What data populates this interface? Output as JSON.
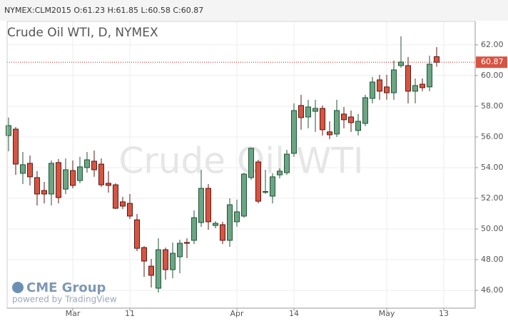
{
  "chart_data": {
    "type": "candlestick",
    "header": "NYMEX:CLM2015 O:61.23 H:61.85 L:60.58 C:60.87",
    "title": "Crude Oil WTI, D, NYMEX",
    "watermark": "Crude Oil WTI",
    "logo": "CME Group",
    "powered_by": "powered by TradingView",
    "categories": [
      null,
      null,
      null,
      null,
      null,
      null,
      null,
      null,
      null,
      "Mar",
      null,
      null,
      null,
      null,
      null,
      null,
      null,
      "11",
      null,
      null,
      null,
      null,
      null,
      null,
      null,
      null,
      null,
      null,
      null,
      null,
      null,
      null,
      "Apr",
      null,
      null,
      null,
      null,
      null,
      null,
      null,
      "14",
      null,
      null,
      null,
      null,
      null,
      null,
      null,
      null,
      null,
      null,
      null,
      null,
      "May",
      null,
      null,
      null,
      null,
      null,
      null,
      null,
      "13",
      null,
      null,
      null,
      null
    ],
    "open": [
      56.09,
      56.51,
      53.63,
      54.28,
      53.35,
      52.51,
      52.28,
      54.33,
      52.6,
      53.81,
      53.16,
      54.0,
      54.42,
      54.23,
      52.98,
      52.88,
      51.77,
      51.67,
      50.6,
      48.79,
      47.58,
      46.14,
      48.65,
      47.35,
      48.19,
      49.12,
      49.26,
      50.42,
      52.65,
      50.23,
      50.28,
      49.26,
      50.47,
      50.84,
      53.35,
      54.37,
      52.4,
      52.14,
      53.53,
      53.67,
      54.93,
      58.05,
      57.3,
      57.67,
      57.86,
      56.33,
      56.19,
      57.49,
      57.3,
      56.42,
      56.88,
      58.51,
      59.72,
      59.26,
      58.88,
      60.65,
      60.65,
      58.98,
      59.44,
      59.26,
      61.23,
      null,
      null,
      null,
      null,
      null
    ],
    "high": [
      57.26,
      56.65,
      55.02,
      54.79,
      53.77,
      53.07,
      54.47,
      54.56,
      54.6,
      54.47,
      54.7,
      55.02,
      55.12,
      54.6,
      53.77,
      52.98,
      52.09,
      52.28,
      50.98,
      48.88,
      48.05,
      49.4,
      48.79,
      49.12,
      49.3,
      49.4,
      51.21,
      53.86,
      52.93,
      50.51,
      50.47,
      52.0,
      51.91,
      53.67,
      55.3,
      54.51,
      53.86,
      53.63,
      53.95,
      55.16,
      58.19,
      58.74,
      58.42,
      58.42,
      58.05,
      57.02,
      58.42,
      57.95,
      57.72,
      57.49,
      58.74,
      59.91,
      60.05,
      60.05,
      60.98,
      62.56,
      61.21,
      59.81,
      59.81,
      61.3,
      61.85,
      null,
      null,
      null,
      null,
      null
    ],
    "low": [
      55.07,
      53.53,
      52.93,
      52.84,
      51.53,
      51.67,
      51.53,
      51.67,
      52.28,
      52.65,
      52.98,
      53.67,
      53.4,
      52.74,
      52.37,
      51.3,
      51.3,
      50.65,
      48.56,
      46.88,
      46.19,
      45.86,
      46.7,
      46.79,
      47.12,
      48.1,
      49.02,
      50.14,
      49.95,
      50.05,
      49.02,
      48.84,
      50.14,
      50.74,
      53.21,
      51.67,
      52.28,
      51.67,
      53.3,
      53.53,
      54.7,
      56.47,
      56.56,
      56.33,
      56.09,
      55.86,
      56.0,
      56.56,
      56.33,
      56.09,
      56.7,
      58.19,
      58.42,
      58.42,
      58.42,
      60.51,
      58.19,
      58.19,
      58.98,
      58.98,
      60.58,
      null,
      null,
      null,
      null,
      null
    ],
    "close": [
      56.74,
      54.23,
      54.19,
      53.4,
      52.28,
      52.28,
      54.28,
      52.05,
      53.86,
      52.84,
      54.05,
      54.51,
      53.86,
      52.88,
      52.84,
      51.35,
      51.49,
      50.84,
      48.74,
      47.91,
      46.98,
      48.65,
      47.35,
      48.42,
      49.07,
      49.07,
      50.74,
      52.65,
      50.47,
      50.37,
      49.26,
      51.58,
      51.12,
      53.58,
      55.26,
      51.81,
      52.44,
      53.4,
      53.77,
      54.88,
      57.72,
      57.26,
      57.95,
      57.86,
      56.47,
      56.14,
      57.72,
      57.12,
      56.93,
      57.02,
      58.56,
      59.58,
      58.98,
      58.88,
      60.37,
      60.88,
      58.98,
      59.35,
      59.21,
      60.74,
      60.87,
      null,
      null,
      null,
      null,
      null
    ],
    "up_color": "#6ba583",
    "down_color": "#d75442",
    "ylim": [
      44.84,
      63.53
    ],
    "yticks": [
      {
        "value": 46,
        "label": "46.00"
      },
      {
        "value": 48,
        "label": "48.00"
      },
      {
        "value": 50,
        "label": "50.00"
      },
      {
        "value": 52,
        "label": "52.00"
      },
      {
        "value": 54,
        "label": "54.00"
      },
      {
        "value": 56,
        "label": "56.00"
      },
      {
        "value": 58,
        "label": "58.00"
      },
      {
        "value": 60,
        "label": "60.00"
      },
      {
        "value": 62,
        "label": "62.00"
      }
    ],
    "grid": true
  }
}
